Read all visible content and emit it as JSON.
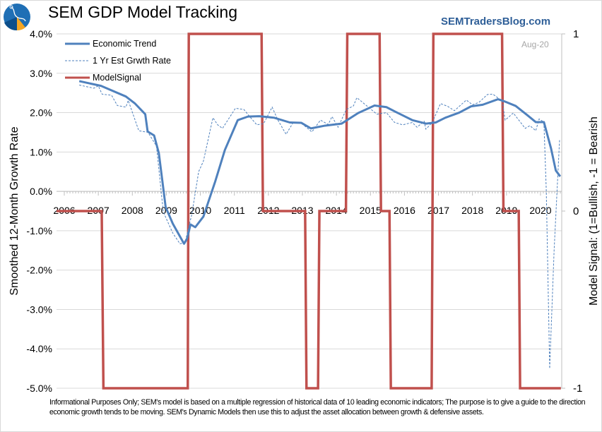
{
  "header": {
    "title": "SEM GDP Model Tracking",
    "brand": "SEMTradersBlog.com",
    "as_of": "Aug-20"
  },
  "footnote": "Informational Purposes Only; SEM's model is based on a multiple regression of historical data of 10 leading economic indicators; The purpose is to give a guide to the direction economic growth tends to be moving. SEM's Dynamic Models then use this to adjust the asset allocation between growth & defensive assets.",
  "colors": {
    "trend": "#4f81bd",
    "estimate": "#4f81bd",
    "signal": "#c0504d",
    "grid": "#d9d9d9"
  },
  "chart_data": {
    "type": "line",
    "title": "SEM GDP Model Tracking",
    "xlabel": "",
    "ylabel": "Smoothed 12-Month Growth Rate",
    "y2label": "Model Signal: (1=Bullish, -1 = Bearish",
    "xlim": [
      2005.77,
      2020.6
    ],
    "ylim": [
      -5.0,
      4.0
    ],
    "y2lim": [
      -1,
      1
    ],
    "x_ticks": [
      "2006",
      "2007",
      "2008",
      "2009",
      "2010",
      "2011",
      "2012",
      "2013",
      "2014",
      "2015",
      "2016",
      "2017",
      "2018",
      "2019",
      "2020"
    ],
    "y_ticks": [
      "4.0%",
      "3.0%",
      "2.0%",
      "1.0%",
      "0.0%",
      "-1.0%",
      "-2.0%",
      "-3.0%",
      "-4.0%",
      "-5.0%"
    ],
    "y2_ticks": [
      "1",
      "0",
      "-1"
    ],
    "grid": true,
    "legend_position": "top-left",
    "series": [
      {
        "name": "Economic Trend",
        "axis": "left",
        "style": "solid",
        "x": [
          2006.44,
          2007.08,
          2007.81,
          2008.08,
          2008.38,
          2008.45,
          2008.64,
          2008.78,
          2008.98,
          2009.19,
          2009.52,
          2009.61,
          2009.71,
          2009.85,
          2010.09,
          2010.44,
          2010.72,
          2011.1,
          2011.4,
          2011.73,
          2012.17,
          2012.63,
          2012.97,
          2013.25,
          2013.67,
          2014.15,
          2014.64,
          2015.12,
          2015.47,
          2015.74,
          2015.95,
          2016.23,
          2016.64,
          2016.92,
          2017.2,
          2017.61,
          2017.96,
          2018.3,
          2018.75,
          2018.93,
          2019.27,
          2019.62,
          2019.86,
          2020.1,
          2020.31,
          2020.45,
          2020.58
        ],
        "values": [
          2.8,
          2.68,
          2.41,
          2.23,
          1.96,
          1.52,
          1.42,
          0.97,
          -0.4,
          -0.82,
          -1.33,
          -1.2,
          -0.84,
          -0.91,
          -0.64,
          0.26,
          1.05,
          1.81,
          1.9,
          1.91,
          1.87,
          1.75,
          1.74,
          1.6,
          1.67,
          1.72,
          1.99,
          2.18,
          2.14,
          2.02,
          1.93,
          1.81,
          1.72,
          1.75,
          1.87,
          2.0,
          2.16,
          2.2,
          2.34,
          2.29,
          2.17,
          1.93,
          1.76,
          1.76,
          1.09,
          0.53,
          0.38
        ]
      },
      {
        "name": "1 Yr Est Grwth Rate",
        "axis": "left",
        "style": "dashed",
        "x": [
          2006.44,
          2006.87,
          2007.0,
          2007.11,
          2007.39,
          2007.56,
          2007.81,
          2007.88,
          2008.19,
          2008.46,
          2008.71,
          2008.91,
          2009.19,
          2009.4,
          2009.55,
          2009.75,
          2009.95,
          2010.09,
          2010.37,
          2010.51,
          2010.65,
          2010.83,
          2011.03,
          2011.28,
          2011.45,
          2011.66,
          2011.86,
          2012.11,
          2012.28,
          2012.52,
          2012.73,
          2012.97,
          2013.28,
          2013.53,
          2013.76,
          2013.87,
          2014.05,
          2014.29,
          2014.5,
          2014.6,
          2014.77,
          2015.19,
          2015.47,
          2015.71,
          2015.95,
          2016.23,
          2016.37,
          2016.58,
          2016.63,
          2016.82,
          2017.06,
          2017.27,
          2017.47,
          2017.82,
          2018.0,
          2018.19,
          2018.44,
          2018.6,
          2018.88,
          2018.96,
          2019.2,
          2019.55,
          2019.69,
          2019.86,
          2019.96,
          2020.1,
          2020.17,
          2020.27,
          2020.4,
          2020.56
        ],
        "values": [
          2.7,
          2.62,
          2.68,
          2.47,
          2.44,
          2.18,
          2.14,
          2.31,
          1.54,
          1.5,
          1.15,
          -0.52,
          -1.06,
          -1.33,
          -1.3,
          -0.58,
          0.5,
          0.77,
          1.87,
          1.69,
          1.6,
          1.84,
          2.11,
          2.08,
          1.9,
          1.69,
          1.72,
          2.14,
          1.81,
          1.45,
          1.75,
          1.73,
          1.51,
          1.81,
          1.7,
          1.9,
          1.63,
          2.08,
          2.17,
          2.38,
          2.26,
          1.96,
          2.0,
          1.75,
          1.69,
          1.75,
          1.63,
          1.78,
          1.58,
          1.75,
          2.23,
          2.16,
          2.05,
          2.32,
          2.2,
          2.26,
          2.46,
          2.47,
          2.29,
          1.81,
          1.99,
          1.6,
          1.67,
          1.54,
          1.84,
          1.76,
          0.02,
          -4.5,
          -1.5,
          1.3
        ]
      },
      {
        "name": "ModelSignal",
        "axis": "right",
        "style": "solid-thick",
        "segments": [
          {
            "from": 2005.77,
            "to": 2007.1,
            "value": 0
          },
          {
            "from": 2007.15,
            "to": 2009.63,
            "value": -1
          },
          {
            "from": 2009.66,
            "to": 2011.8,
            "value": 1
          },
          {
            "from": 2011.84,
            "to": 2013.08,
            "value": 0
          },
          {
            "from": 2013.12,
            "to": 2013.46,
            "value": -1
          },
          {
            "from": 2013.5,
            "to": 2014.28,
            "value": 0
          },
          {
            "from": 2014.32,
            "to": 2015.27,
            "value": 1
          },
          {
            "from": 2015.31,
            "to": 2015.56,
            "value": 0
          },
          {
            "from": 2015.6,
            "to": 2016.8,
            "value": -1
          },
          {
            "from": 2016.85,
            "to": 2018.87,
            "value": 1
          },
          {
            "from": 2018.91,
            "to": 2019.36,
            "value": 0
          },
          {
            "from": 2019.4,
            "to": 2020.6,
            "value": -1
          }
        ]
      }
    ]
  }
}
